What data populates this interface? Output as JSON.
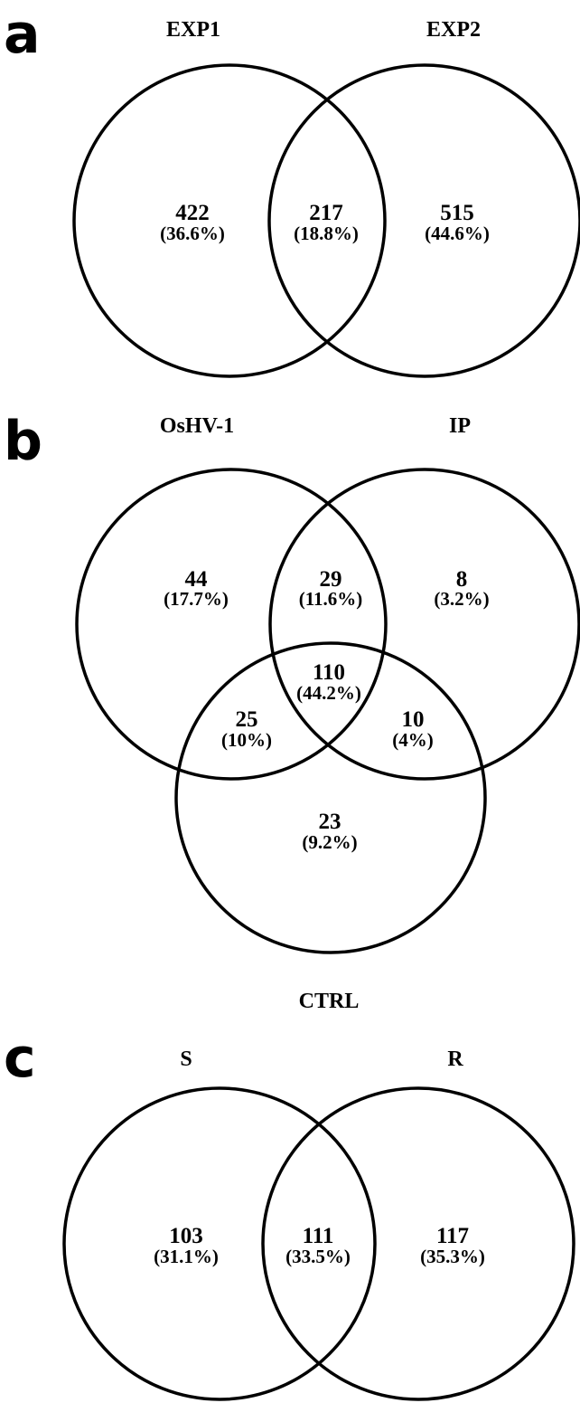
{
  "panels": {
    "a": {
      "letter": "a",
      "sets": [
        "EXP1",
        "EXP2"
      ],
      "regions": [
        {
          "id": "exp1-only",
          "count": "422",
          "percent": "(36.6%)"
        },
        {
          "id": "exp1-exp2",
          "count": "217",
          "percent": "(18.8%)"
        },
        {
          "id": "exp2-only",
          "count": "515",
          "percent": "(44.6%)"
        }
      ]
    },
    "b": {
      "letter": "b",
      "sets": [
        "OsHV-1",
        "IP",
        "CTRL"
      ],
      "regions": [
        {
          "id": "oshv1-only",
          "count": "44",
          "percent": "(17.7%)"
        },
        {
          "id": "oshv1-ip",
          "count": "29",
          "percent": "(11.6%)"
        },
        {
          "id": "ip-only",
          "count": "8",
          "percent": "(3.2%)"
        },
        {
          "id": "all-three",
          "count": "110",
          "percent": "(44.2%)"
        },
        {
          "id": "oshv1-ctrl",
          "count": "25",
          "percent": "(10%)"
        },
        {
          "id": "ip-ctrl",
          "count": "10",
          "percent": "(4%)"
        },
        {
          "id": "ctrl-only",
          "count": "23",
          "percent": "(9.2%)"
        }
      ]
    },
    "c": {
      "letter": "c",
      "sets": [
        "S",
        "R"
      ],
      "regions": [
        {
          "id": "s-only",
          "count": "103",
          "percent": "(31.1%)"
        },
        {
          "id": "s-r",
          "count": "111",
          "percent": "(33.5%)"
        },
        {
          "id": "r-only",
          "count": "117",
          "percent": "(35.3%)"
        }
      ]
    }
  }
}
